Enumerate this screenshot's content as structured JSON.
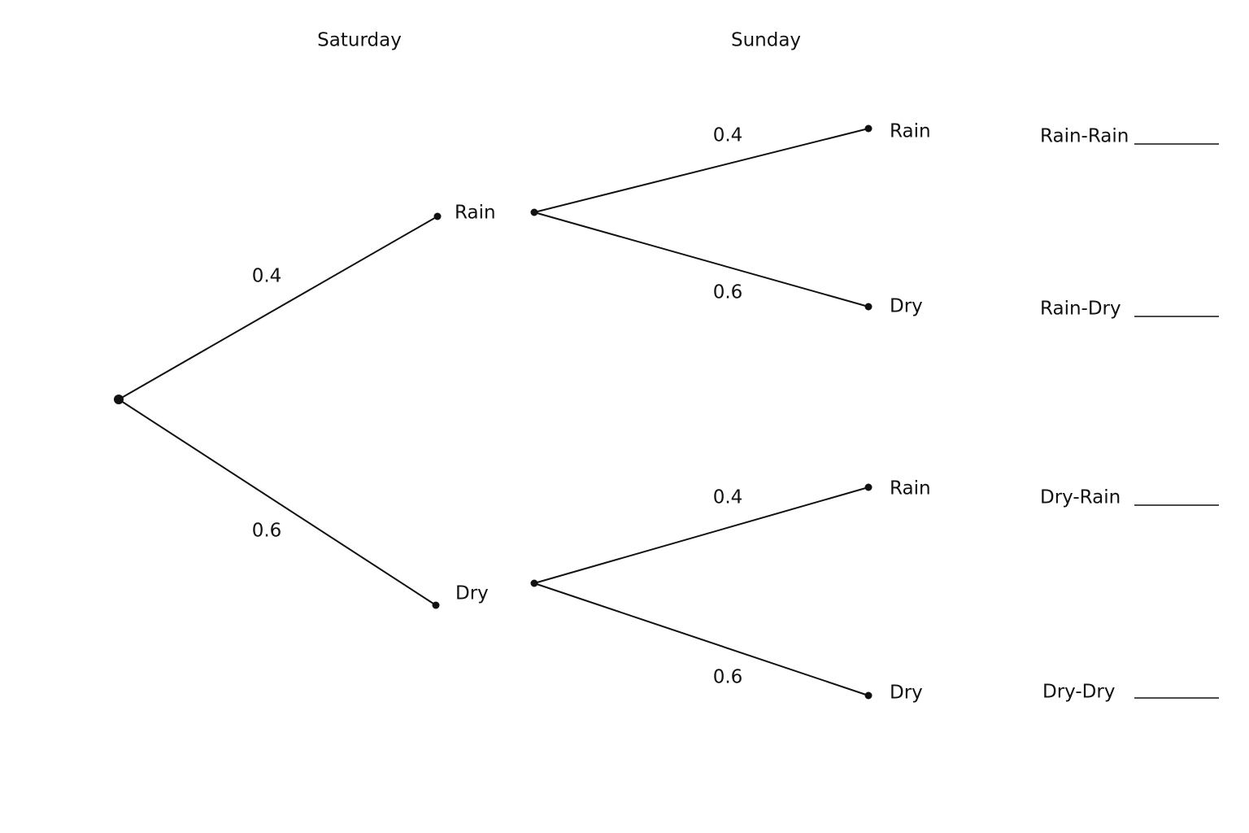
{
  "headers": [
    "Saturday",
    "Sunday"
  ],
  "saturday": [
    {
      "label": "Rain",
      "probability": "0.4"
    },
    {
      "label": "Dry",
      "probability": "0.6"
    }
  ],
  "sunday": [
    [
      {
        "label": "Rain",
        "probability": "0.4"
      },
      {
        "label": "Dry",
        "probability": "0.6"
      }
    ],
    [
      {
        "label": "Rain",
        "probability": "0.4"
      },
      {
        "label": "Dry",
        "probability": "0.6"
      }
    ]
  ],
  "outcomes": [
    "Rain-Rain",
    "Rain-Dry",
    "Dry-Rain",
    "Dry-Dry"
  ]
}
